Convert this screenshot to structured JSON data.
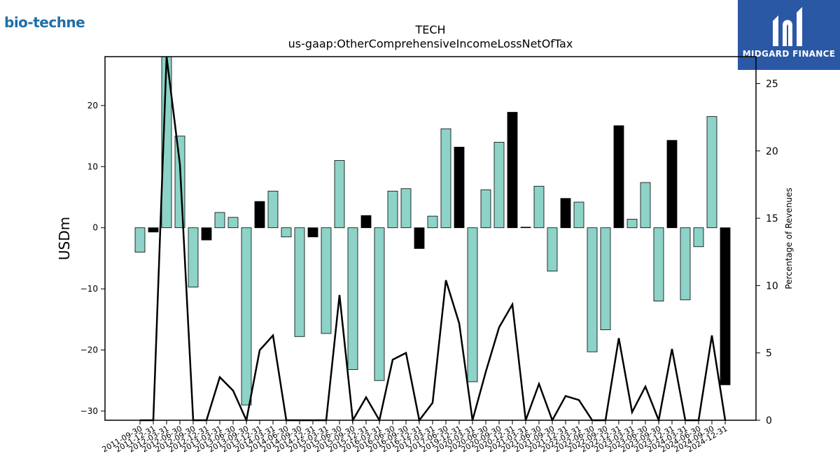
{
  "branding": {
    "left_logo_text": "bio-techne",
    "right_logo_text": "MIDGARD FINANCE"
  },
  "colors": {
    "bar_teal": "#8dd3c7",
    "bar_black": "#000000",
    "line": "#000000",
    "brand_blue": "#2b58a5"
  },
  "chart_data": {
    "type": "bar",
    "title": "TECH",
    "subtitle": "us-gaap:OtherComprehensiveIncomeLossNetOfTax",
    "ylabel": "USDm",
    "y2label": "Percentage of Revenues",
    "ylim": [
      -31.5,
      28
    ],
    "y2lim": [
      0,
      27
    ],
    "yticks": [
      -30,
      -20,
      -10,
      0,
      10,
      20
    ],
    "y2ticks": [
      0,
      5,
      10,
      15,
      20,
      25
    ],
    "grid": false,
    "categories": [
      "2011-09-30",
      "2011-12-31",
      "2012-03-31",
      "2012-06-30",
      "2012-09-30",
      "2012-12-31",
      "2013-03-31",
      "2013-06-30",
      "2013-09-30",
      "2013-12-31",
      "2014-03-31",
      "2014-06-30",
      "2014-09-30",
      "2014-12-31",
      "2015-03-31",
      "2015-06-30",
      "2015-09-30",
      "2015-12-31",
      "2016-03-31",
      "2016-06-30",
      "2016-09-30",
      "2016-12-31",
      "2017-03-31",
      "2017-06-30",
      "2019-12-31",
      "2020-03-31",
      "2020-06-30",
      "2020-09-30",
      "2020-12-31",
      "2021-03-31",
      "2021-06-30",
      "2021-09-30",
      "2021-12-31",
      "2022-03-31",
      "2022-06-30",
      "2022-09-30",
      "2022-12-31",
      "2023-03-31",
      "2023-06-30",
      "2023-09-30",
      "2023-12-31",
      "2024-03-31",
      "2024-06-30",
      "2024-09-30",
      "2024-12-31"
    ],
    "series": [
      {
        "values": [
          -4.0,
          -0.7,
          28.0,
          15.0,
          -9.7,
          -2.0,
          2.5,
          1.7,
          -29.0,
          4.3,
          6.0,
          -1.5,
          -17.8,
          -1.5,
          -17.3,
          11.0,
          -23.2,
          2.0,
          -25.0,
          6.0,
          6.4,
          -3.4,
          1.9,
          16.2,
          13.2,
          -25.2,
          6.2,
          14.0,
          18.9,
          0.1,
          6.8,
          -7.1,
          4.8,
          4.2,
          -20.3,
          -16.7,
          16.7,
          1.4,
          7.4,
          -12.0,
          14.3,
          -11.8,
          -3.1,
          18.2,
          -25.7
        ],
        "highlight": [
          false,
          true,
          false,
          false,
          false,
          true,
          false,
          false,
          false,
          true,
          false,
          false,
          false,
          true,
          false,
          false,
          false,
          true,
          false,
          false,
          false,
          true,
          false,
          false,
          true,
          false,
          false,
          false,
          true,
          true,
          false,
          false,
          true,
          false,
          false,
          false,
          true,
          false,
          false,
          false,
          true,
          false,
          false,
          false,
          true
        ]
      }
    ],
    "line_values": [
      0,
      0,
      27.5,
      19.0,
      0,
      0,
      3.2,
      2.2,
      0,
      5.2,
      6.3,
      0,
      0,
      0,
      0,
      9.3,
      0,
      1.7,
      0,
      4.5,
      5.0,
      0,
      1.3,
      10.4,
      7.2,
      0,
      3.6,
      6.9,
      8.6,
      0,
      2.7,
      0,
      1.8,
      1.5,
      0,
      0,
      6.1,
      0.6,
      2.5,
      0,
      5.3,
      0,
      0,
      6.3,
      0
    ]
  }
}
